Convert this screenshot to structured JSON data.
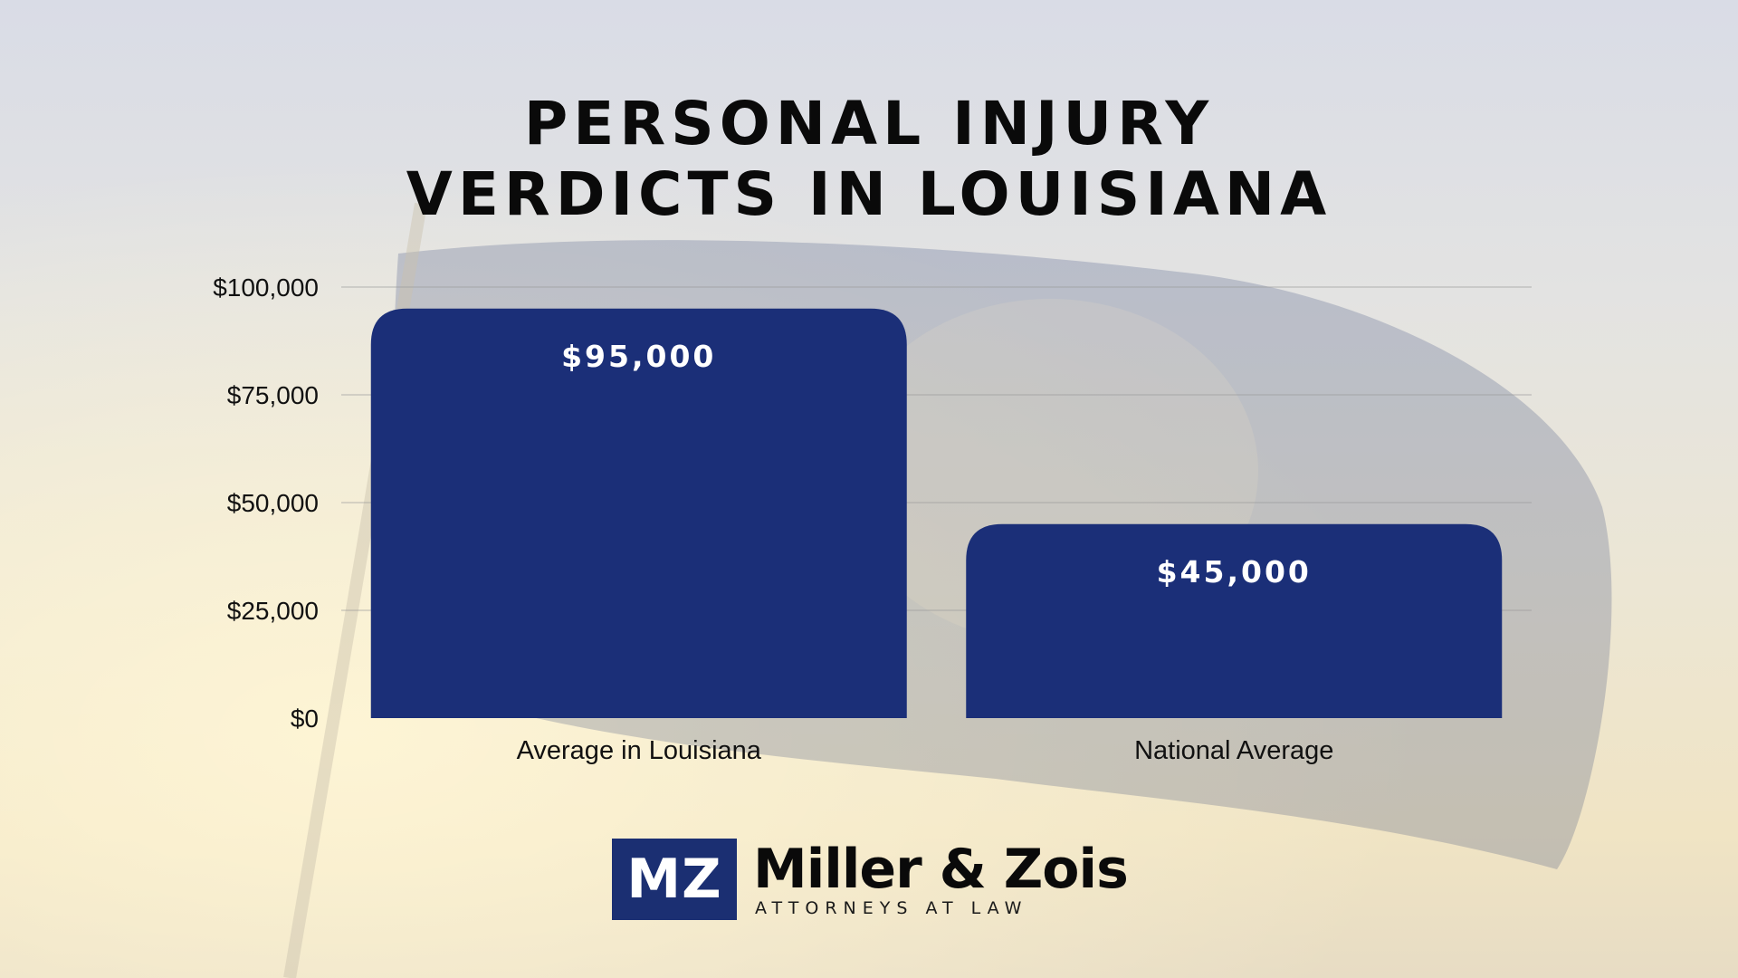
{
  "title_lines": [
    "PERSONAL INJURY",
    "VERDICTS IN LOUISIANA"
  ],
  "chart_data": {
    "type": "bar",
    "categories": [
      "Average in Louisiana",
      "National Average"
    ],
    "values": [
      95000,
      45000
    ],
    "value_labels": [
      "$95,000",
      "$45,000"
    ],
    "yticks": [
      0,
      25000,
      50000,
      75000,
      100000
    ],
    "ytick_labels": [
      "$0",
      "$25,000",
      "$50,000",
      "$75,000",
      "$100,000"
    ],
    "ylim": [
      0,
      100000
    ],
    "grid": true,
    "bar_color": "#1b2f78"
  },
  "logo": {
    "mark": "MZ",
    "name": "Miller & Zois",
    "subtitle": "ATTORNEYS AT LAW",
    "color": "#1b2f72"
  }
}
